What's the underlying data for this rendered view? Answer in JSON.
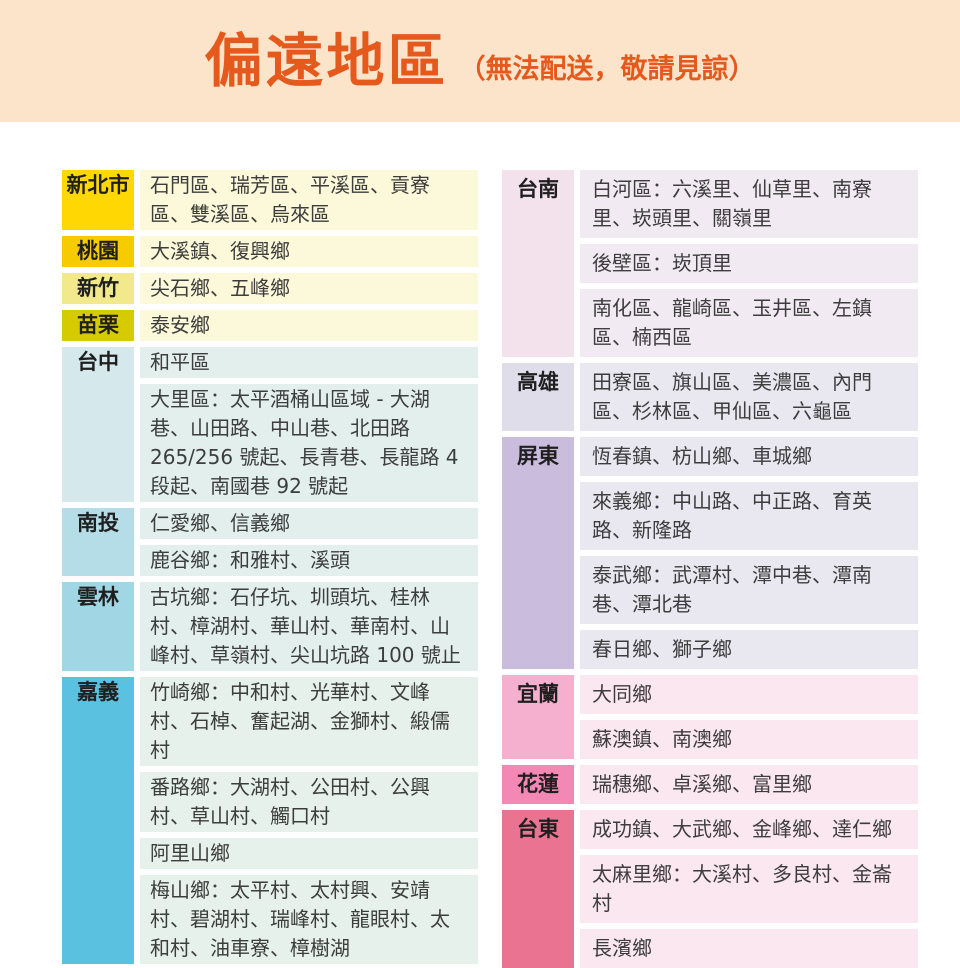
{
  "header": {
    "title": "偏遠地區",
    "subtitle": "（無法配送，敬請見諒）",
    "band_bg": "#FCE4CA",
    "title_color": "#E5591D"
  },
  "text_color": "#3d3d3d",
  "tables": {
    "left": {
      "rows": [
        {
          "region": "新北市",
          "header_bg": "#FFD803",
          "body_bg": "#FBF9D9",
          "entries": [
            "石門區、瑞芳區、平溪區、貢寮區、雙溪區、烏來區"
          ]
        },
        {
          "region": "桃園",
          "header_bg": "#F6CB00",
          "body_bg": "#FBF9D9",
          "entries": [
            "大溪鎮、復興鄉"
          ]
        },
        {
          "region": "新竹",
          "header_bg": "#F1E98C",
          "body_bg": "#FBF9D9",
          "entries": [
            "尖石鄉、五峰鄉"
          ]
        },
        {
          "region": "苗栗",
          "header_bg": "#D6CB00",
          "body_bg": "#FBF9D9",
          "entries": [
            "泰安鄉"
          ]
        },
        {
          "region": "台中",
          "header_bg": "#D5E8EC",
          "body_bg": "#E2EFED",
          "entries": [
            "和平區",
            "大里區：太平酒桶山區域 - 大湖巷、山田路、中山巷、北田路 265/256 號起、長青巷、長龍路 4 段起、南國巷 92 號起"
          ]
        },
        {
          "region": "南投",
          "header_bg": "#B5DDE7",
          "body_bg": "#E2EFED",
          "entries": [
            "仁愛鄉、信義鄉",
            "鹿谷鄉：和雅村、溪頭"
          ]
        },
        {
          "region": "雲林",
          "header_bg": "#A1D6E4",
          "body_bg": "#E2EFED",
          "entries": [
            "古坑鄉：石仔坑、圳頭坑、桂林村、樟湖村、華山村、華南村、山峰村、草嶺村、尖山坑路 100 號止"
          ]
        },
        {
          "region": "嘉義",
          "header_bg": "#5BC1E1",
          "body_bg": "#E5F1EA",
          "entries": [
            "竹崎鄉：中和村、光華村、文峰村、石棹、奮起湖、金獅村、緞儒村",
            "番路鄉：大湖村、公田村、公興村、草山村、觸口村",
            "阿里山鄉",
            "梅山鄉：太平村、太村興、安靖村、碧湖村、瑞峰村、龍眼村、太和村、油車寮、樟樹湖"
          ]
        }
      ]
    },
    "right": {
      "rows": [
        {
          "region": "台南",
          "header_bg": "#F3E1EB",
          "body_bg": "#F1EAF2",
          "entries": [
            "白河區：六溪里、仙草里、南寮里、崁頭里、關嶺里",
            "後壁區：崁頂里",
            "南化區、龍崎區、玉井區、左鎮區、楠西區"
          ]
        },
        {
          "region": "高雄",
          "header_bg": "#DFDDEA",
          "body_bg": "#E9E8F1",
          "entries": [
            "田寮區、旗山區、美濃區、內門區、杉林區、甲仙區、六龜區"
          ]
        },
        {
          "region": "屏東",
          "header_bg": "#C9BCDC",
          "body_bg": "#E9E8F1",
          "entries": [
            "恆春鎮、枋山鄉、車城鄉",
            "來義鄉：中山路、中正路、育英路、新隆路",
            "泰武鄉：武潭村、潭中巷、潭南巷、潭北巷",
            "春日鄉、獅子鄉"
          ]
        },
        {
          "region": "宜蘭",
          "header_bg": "#F5AFCF",
          "body_bg": "#FBE7F0",
          "entries": [
            "大同鄉",
            "蘇澳鎮、南澳鄉"
          ]
        },
        {
          "region": "花蓮",
          "header_bg": "#F288B3",
          "body_bg": "#FBE7F0",
          "entries": [
            "瑞穗鄉、卓溪鄉、富里鄉"
          ]
        },
        {
          "region": "台東",
          "header_bg": "#E97390",
          "body_bg": "#FBE7F0",
          "entries": [
            "成功鎮、大武鄉、金峰鄉、達仁鄉",
            "太麻里鄉：大溪村、多良村、金崙村",
            "長濱鄉"
          ]
        }
      ]
    }
  }
}
